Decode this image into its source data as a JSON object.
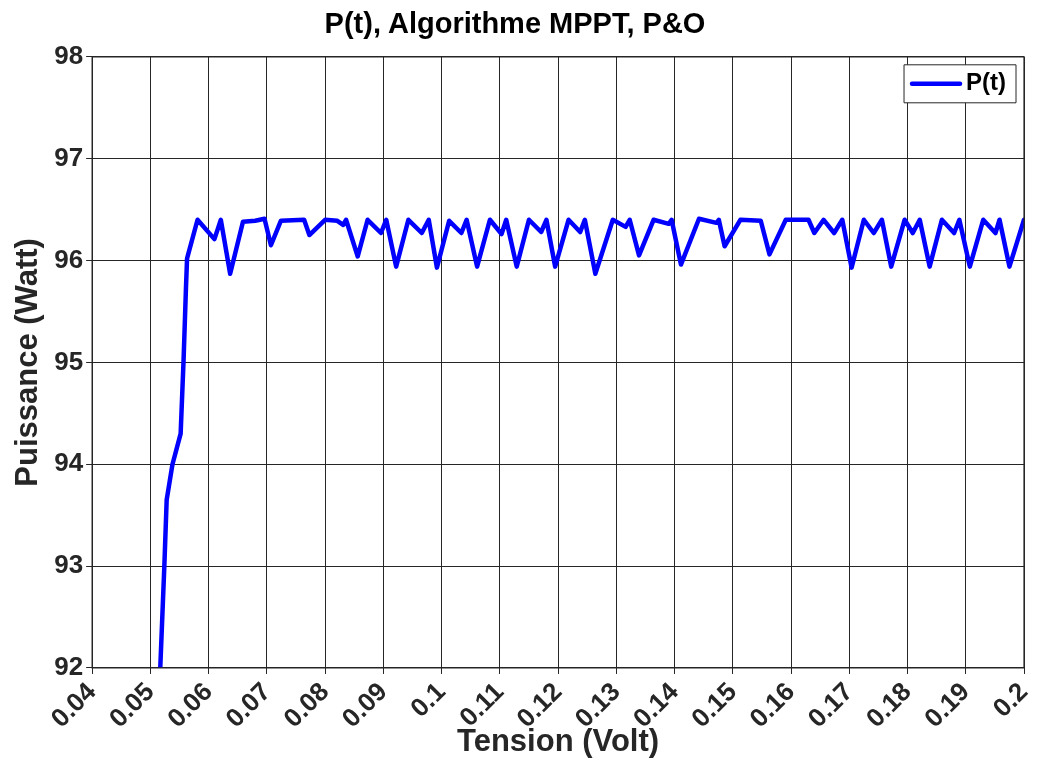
{
  "chart_data": {
    "type": "line",
    "title": "P(t), Algorithme MPPT, P&O",
    "xlabel": "Tension (Volt)",
    "ylabel": "Puissance (Watt)",
    "xlim": [
      0.04,
      0.2
    ],
    "xticks": [
      0.04,
      0.05,
      0.06,
      0.07,
      0.08,
      0.09,
      0.1,
      0.11,
      0.12,
      0.13,
      0.14,
      0.15,
      0.16,
      0.17,
      0.18,
      0.19,
      0.2
    ],
    "ylim": [
      92,
      98
    ],
    "yticks": [
      92,
      93,
      94,
      95,
      96,
      97,
      98
    ],
    "grid": true,
    "legend": "top right",
    "marker": "none",
    "line_style": "solid",
    "series": [
      {
        "name": "P(t)",
        "color": "#0000ff",
        "x": [
          0.0517,
          0.0524,
          0.0528,
          0.0538,
          0.0552,
          0.0557,
          0.0561,
          0.0563,
          0.0581,
          0.061,
          0.0621,
          0.0637,
          0.0659,
          0.068,
          0.0696,
          0.0707,
          0.0724,
          0.0764,
          0.0773,
          0.08,
          0.0821,
          0.0831,
          0.0836,
          0.0856,
          0.0873,
          0.0896,
          0.0905,
          0.0922,
          0.0943,
          0.0966,
          0.0978,
          0.0992,
          0.1013,
          0.1034,
          0.1043,
          0.1061,
          0.1083,
          0.1103,
          0.1111,
          0.1129,
          0.115,
          0.1171,
          0.118,
          0.1195,
          0.1218,
          0.1238,
          0.1246,
          0.1264,
          0.1294,
          0.1316,
          0.1323,
          0.1339,
          0.1364,
          0.139,
          0.1395,
          0.1411,
          0.1442,
          0.1472,
          0.1476,
          0.1486,
          0.1513,
          0.1548,
          0.1563,
          0.1591,
          0.163,
          0.164,
          0.1656,
          0.1674,
          0.1688,
          0.1704,
          0.1725,
          0.1742,
          0.1756,
          0.1772,
          0.1795,
          0.1809,
          0.1821,
          0.1838,
          0.1859,
          0.188,
          0.1889,
          0.1907,
          0.193,
          0.1951,
          0.1958,
          0.1975,
          0.2
        ],
        "values": [
          92.0,
          93.0,
          93.65,
          94.0,
          94.3,
          95.02,
          95.71,
          96.02,
          96.4,
          96.21,
          96.4,
          95.87,
          96.38,
          96.39,
          96.41,
          96.15,
          96.39,
          96.4,
          96.25,
          96.4,
          96.39,
          96.35,
          96.4,
          96.04,
          96.4,
          96.27,
          96.4,
          95.94,
          96.4,
          96.27,
          96.4,
          95.93,
          96.39,
          96.27,
          96.4,
          95.94,
          96.4,
          96.26,
          96.4,
          95.94,
          96.4,
          96.28,
          96.4,
          95.94,
          96.4,
          96.28,
          96.4,
          95.87,
          96.4,
          96.33,
          96.4,
          96.05,
          96.4,
          96.36,
          96.4,
          95.96,
          96.41,
          96.37,
          96.4,
          96.14,
          96.4,
          96.39,
          96.06,
          96.4,
          96.4,
          96.27,
          96.4,
          96.27,
          96.4,
          95.93,
          96.4,
          96.27,
          96.4,
          95.94,
          96.4,
          96.27,
          96.4,
          95.94,
          96.4,
          96.27,
          96.4,
          95.94,
          96.4,
          96.27,
          96.4,
          95.94,
          96.4
        ]
      }
    ]
  }
}
